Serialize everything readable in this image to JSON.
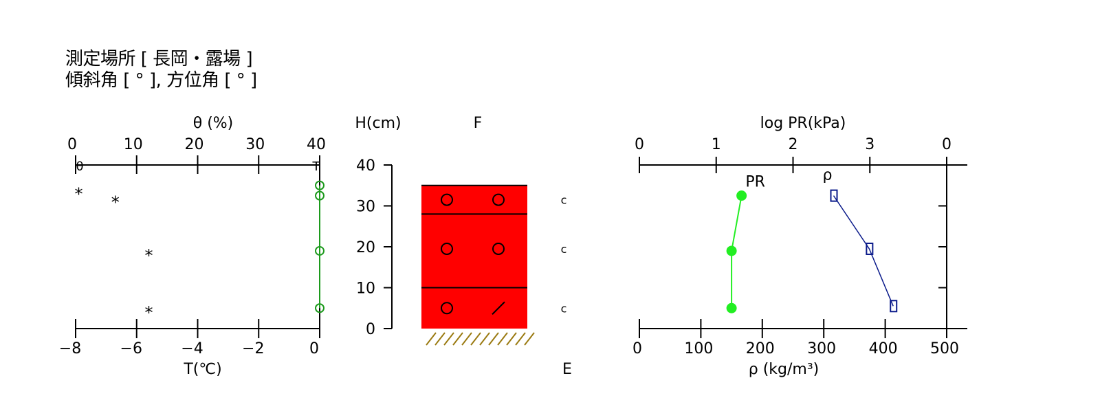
{
  "header": {
    "location_line": "測定場所 [ 長岡・露場 ]",
    "angle_line": "傾斜角 [ ° ], 方位角 [ ° ]"
  },
  "colors": {
    "snow_fill": "#ff0000",
    "theta_line": "#1c9a1c",
    "pr_line": "#22ee22",
    "rho_line": "#0a1a8a",
    "ground_hatch": "#9a7a10"
  },
  "chart_data": [
    {
      "type": "scatter",
      "panel": "temperature-moisture",
      "top_axis": {
        "label": "θ (%)",
        "ticks": [
          "0",
          "10",
          "20",
          "30",
          "40"
        ],
        "range": [
          0,
          40
        ]
      },
      "bottom_axis": {
        "label": "T(℃)",
        "ticks": [
          "−8",
          "−6",
          "−4",
          "−2",
          "0"
        ],
        "range": [
          -8,
          0
        ]
      },
      "markers": {
        "theta": "θ",
        "temperature": "T"
      },
      "y_range": [
        0,
        40
      ],
      "series": [
        {
          "name": "θ",
          "marker": "*",
          "points": [
            {
              "x": 0.5,
              "y": 33
            },
            {
              "x": 6.5,
              "y": 31
            },
            {
              "x": 12,
              "y": 18
            },
            {
              "x": 12,
              "y": 4
            }
          ]
        },
        {
          "name": "T",
          "marker": "o",
          "points": [
            {
              "x": 0,
              "y": 35
            },
            {
              "x": 0,
              "y": 32.5
            },
            {
              "x": 0,
              "y": 19
            },
            {
              "x": 0,
              "y": 5
            }
          ]
        }
      ]
    },
    {
      "type": "table",
      "panel": "snow-profile",
      "axis": {
        "label": "H(cm)",
        "ticks": [
          "0",
          "10",
          "20",
          "30",
          "40"
        ],
        "range": [
          0,
          40
        ]
      },
      "top_label": "F",
      "bottom_label": "E",
      "snow_depth": 35,
      "layer_boundaries": [
        28,
        10
      ],
      "layers": [
        {
          "top": 35,
          "bottom": 28,
          "grains": [
            "○",
            "○"
          ],
          "hardness": "c",
          "mid": 31.5
        },
        {
          "top": 28,
          "bottom": 10,
          "grains": [
            "○",
            "○"
          ],
          "hardness": "c",
          "mid": 19.5
        },
        {
          "top": 10,
          "bottom": 0,
          "grains": [
            "○",
            "／"
          ],
          "hardness": "c",
          "mid": 5
        }
      ]
    },
    {
      "type": "line",
      "panel": "hardness-density",
      "top_axis": {
        "label": "log PR(kPa)",
        "ticks": [
          "0",
          "1",
          "2",
          "3",
          "0"
        ],
        "range": [
          0,
          4
        ]
      },
      "bottom_axis": {
        "label": "ρ (kg/m³)",
        "ticks": [
          "0",
          "100",
          "200",
          "300",
          "400",
          "500"
        ],
        "range": [
          0,
          500
        ]
      },
      "y_range": [
        0,
        40
      ],
      "series": [
        {
          "name": "PR",
          "marker": "filled-circle",
          "x_axis": "top",
          "points": [
            {
              "x": 1.33,
              "y": 32.5
            },
            {
              "x": 1.2,
              "y": 19
            },
            {
              "x": 1.2,
              "y": 5
            }
          ]
        },
        {
          "name": "ρ",
          "marker": "square",
          "x_axis": "bottom",
          "points": [
            {
              "x": 316,
              "y": 32.5
            },
            {
              "x": 374,
              "y": 19.5
            },
            {
              "x": 413,
              "y": 5.5
            }
          ]
        }
      ]
    }
  ]
}
